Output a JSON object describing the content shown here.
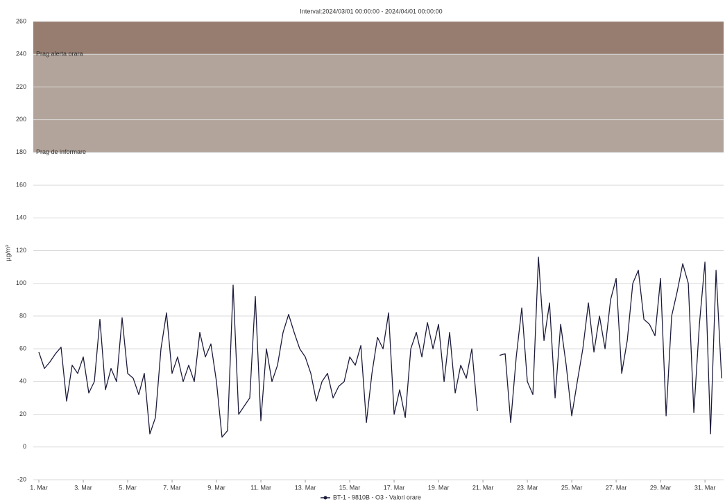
{
  "chart_data": {
    "type": "line",
    "title": "Interval:2024/03/01 00:00:00 - 2024/04/01 00:00:00",
    "y_label": "µg/m³",
    "bands": [
      {
        "from": 180,
        "to": 240,
        "label": "Prag de informare",
        "color": "#b3a49b"
      },
      {
        "from": 240,
        "to": 260,
        "label": "Prag alerta orara",
        "color": "#977d70"
      }
    ],
    "x": [
      1,
      1.25,
      1.5,
      1.75,
      2,
      2.25,
      2.5,
      2.75,
      3,
      3.25,
      3.5,
      3.75,
      4,
      4.25,
      4.5,
      4.75,
      5,
      5.25,
      5.5,
      5.75,
      6,
      6.25,
      6.5,
      6.75,
      7,
      7.25,
      7.5,
      7.75,
      8,
      8.25,
      8.5,
      8.75,
      9,
      9.25,
      9.5,
      9.75,
      10,
      10.25,
      10.5,
      10.75,
      11,
      11.25,
      11.5,
      11.75,
      12,
      12.25,
      12.5,
      12.75,
      13,
      13.25,
      13.5,
      13.75,
      14,
      14.25,
      14.5,
      14.75,
      15,
      15.25,
      15.5,
      15.75,
      16,
      16.25,
      16.5,
      16.75,
      17,
      17.25,
      17.5,
      17.75,
      18,
      18.25,
      18.5,
      18.75,
      19,
      19.25,
      19.5,
      19.75,
      20,
      20.25,
      20.5,
      20.75,
      21,
      21.25,
      21.5,
      21.75,
      22,
      22.25,
      22.5,
      22.75,
      23,
      23.25,
      23.5,
      23.75,
      24,
      24.25,
      24.5,
      24.75,
      25,
      25.25,
      25.5,
      25.75,
      26,
      26.25,
      26.5,
      26.75,
      27,
      27.25,
      27.5,
      27.75,
      28,
      28.25,
      28.5,
      28.75,
      29,
      29.25,
      29.5,
      29.75,
      30,
      30.25,
      30.5,
      30.75,
      31,
      31.25,
      31.5,
      31.75
    ],
    "series": [
      {
        "name": "BT-1 - 9810B - O3 - Valori orare",
        "color": "#1c1c3c",
        "values": [
          58,
          48,
          52,
          57,
          61,
          28,
          50,
          45,
          55,
          33,
          40,
          78,
          35,
          48,
          40,
          79,
          45,
          42,
          32,
          45,
          8,
          18,
          60,
          82,
          45,
          55,
          40,
          50,
          40,
          70,
          55,
          63,
          40,
          6,
          10,
          99,
          20,
          25,
          30,
          92,
          16,
          60,
          40,
          50,
          70,
          81,
          70,
          60,
          55,
          45,
          28,
          40,
          45,
          30,
          37,
          40,
          55,
          50,
          62,
          15,
          45,
          67,
          60,
          82,
          20,
          35,
          18,
          60,
          70,
          55,
          76,
          60,
          75,
          40,
          70,
          33,
          50,
          42,
          60,
          22,
          null,
          null,
          null,
          56,
          57,
          15,
          55,
          85,
          40,
          32,
          116,
          65,
          88,
          30,
          75,
          50,
          19,
          40,
          60,
          88,
          58,
          80,
          60,
          90,
          103,
          45,
          65,
          100,
          108,
          78,
          75,
          68,
          103,
          19,
          80,
          95,
          112,
          100,
          21,
          75,
          113,
          8,
          108,
          42
        ]
      }
    ],
    "xlim": [
      0.75,
      31.84
    ],
    "xticks": [
      {
        "value": 1,
        "label": "1. Mar"
      },
      {
        "value": 3,
        "label": "3. Mar"
      },
      {
        "value": 5,
        "label": "5. Mar"
      },
      {
        "value": 7,
        "label": "7. Mar"
      },
      {
        "value": 9,
        "label": "9. Mar"
      },
      {
        "value": 11,
        "label": "11. Mar"
      },
      {
        "value": 13,
        "label": "13. Mar"
      },
      {
        "value": 15,
        "label": "15. Mar"
      },
      {
        "value": 17,
        "label": "17. Mar"
      },
      {
        "value": 19,
        "label": "19. Mar"
      },
      {
        "value": 21,
        "label": "21. Mar"
      },
      {
        "value": 23,
        "label": "23. Mar"
      },
      {
        "value": 25,
        "label": "25. Mar"
      },
      {
        "value": 27,
        "label": "27. Mar"
      },
      {
        "value": 29,
        "label": "29. Mar"
      },
      {
        "value": 31,
        "label": "31. Mar"
      }
    ],
    "ylim": [
      -20,
      260
    ],
    "yticks": [
      -20,
      0,
      20,
      40,
      60,
      80,
      100,
      120,
      140,
      160,
      180,
      200,
      220,
      240,
      260
    ],
    "grid": true
  }
}
